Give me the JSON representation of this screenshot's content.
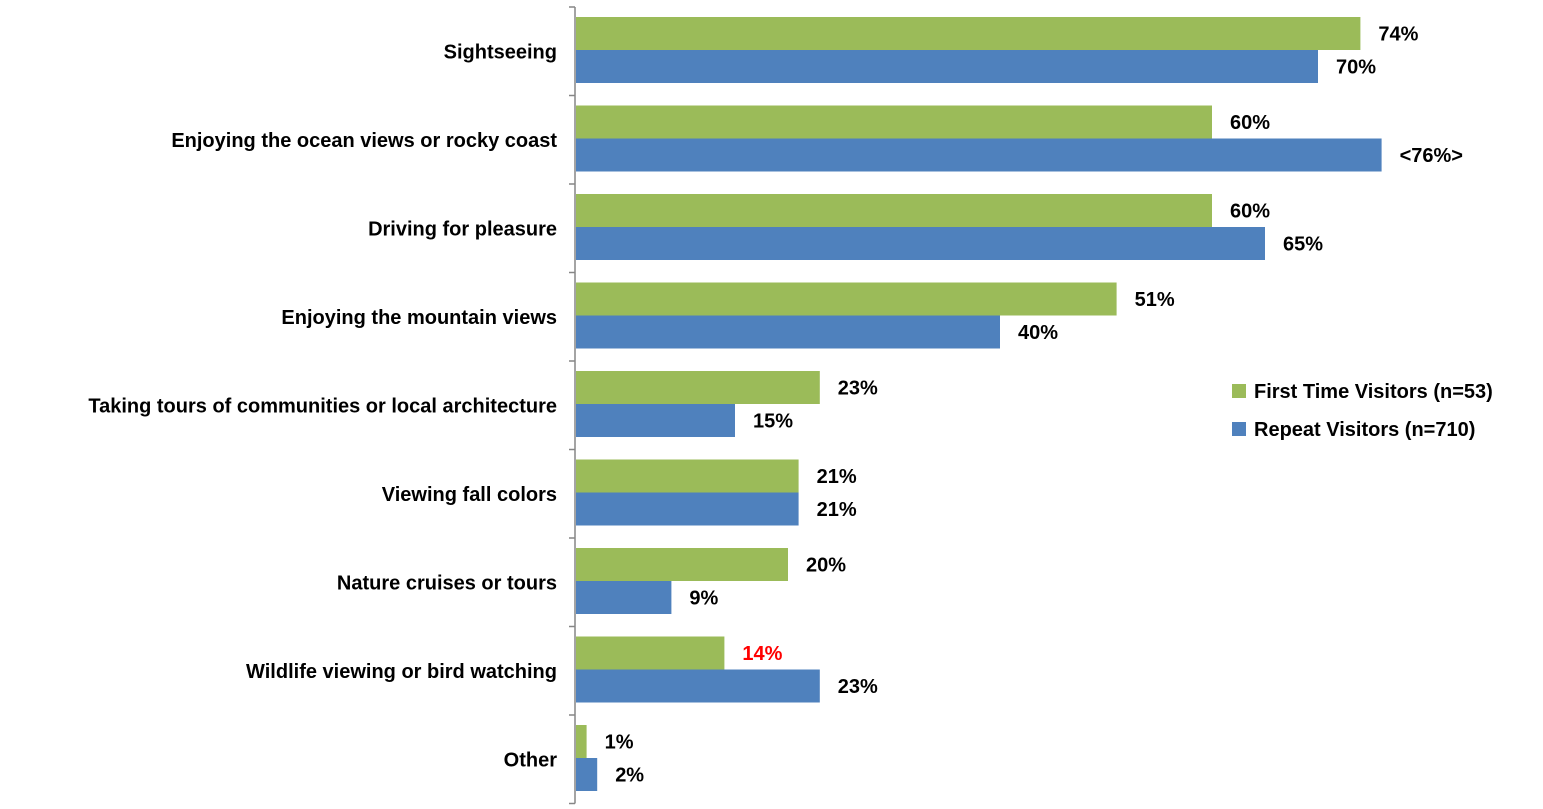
{
  "chart_data": {
    "type": "bar",
    "orientation": "horizontal",
    "categories": [
      "Sightseeing",
      "Enjoying the ocean views or rocky coast",
      "Driving for pleasure",
      "Enjoying the mountain views",
      "Taking tours of communities or local architecture",
      "Viewing fall colors",
      "Nature cruises or tours",
      "Wildlife viewing or bird watching",
      "Other"
    ],
    "series": [
      {
        "name": "First Time Visitors (n=53)",
        "color": "#9BBB59",
        "values": [
          74,
          60,
          60,
          51,
          23,
          21,
          20,
          14,
          1
        ],
        "labels": [
          "74%",
          "60%",
          "60%",
          "51%",
          "23%",
          "21%",
          "20%",
          "14%",
          "1%"
        ],
        "label_colors": [
          "#000000",
          "#000000",
          "#000000",
          "#000000",
          "#000000",
          "#000000",
          "#000000",
          "#FF0000",
          "#000000"
        ]
      },
      {
        "name": "Repeat Visitors (n=710)",
        "color": "#4F81BD",
        "values": [
          70,
          76,
          65,
          40,
          15,
          21,
          9,
          23,
          2
        ],
        "labels": [
          "70%",
          "<76%>",
          "65%",
          "40%",
          "15%",
          "21%",
          "9%",
          "23%",
          "2%"
        ],
        "label_colors": [
          "#000000",
          "#000000",
          "#000000",
          "#000000",
          "#000000",
          "#000000",
          "#000000",
          "#000000",
          "#000000"
        ]
      }
    ],
    "xlim": [
      0,
      100
    ],
    "grid": false,
    "legend_position": "right"
  }
}
